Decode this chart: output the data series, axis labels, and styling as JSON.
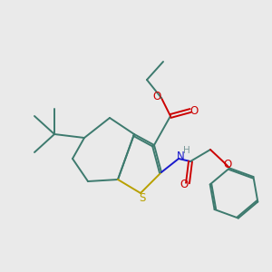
{
  "bg_color": "#eaeaea",
  "bond_color": "#3d7a6e",
  "S_color": "#b8a000",
  "N_color": "#1a1acc",
  "O_color": "#cc0000",
  "H_color": "#7a9a9a",
  "line_width": 1.4,
  "figsize": [
    3.0,
    3.0
  ],
  "dpi": 100,
  "xlim": [
    0,
    10
  ],
  "ylim": [
    0,
    10
  ]
}
